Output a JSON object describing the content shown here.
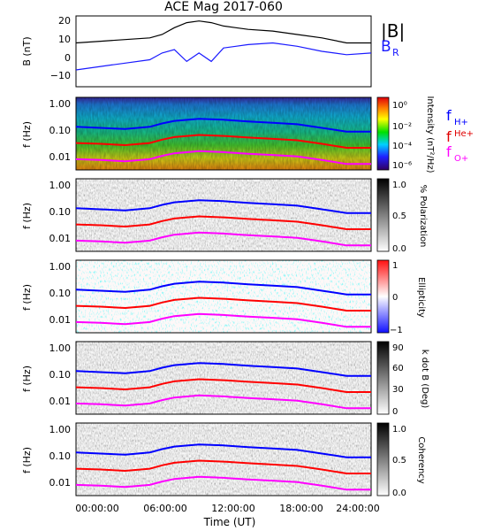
{
  "title": "ACE Mag 2017-060",
  "xlabel": "Time (UT)",
  "x_ticks": [
    "00:00:00",
    "06:00:00",
    "12:00:00",
    "18:00:00",
    "24:00:00"
  ],
  "colors": {
    "total_field": "#000000",
    "radial_field": "#1a1aff",
    "f_h": "#0000ff",
    "f_he": "#ff0000",
    "f_o": "#ff00ff"
  },
  "freq_legend": {
    "h": {
      "base": "f",
      "sub": "H+"
    },
    "he": {
      "base": "f",
      "sup": "He+"
    },
    "o": {
      "base": "f",
      "sub": "O+"
    }
  },
  "chart_data": [
    {
      "type": "line",
      "panel": "magnetic-field",
      "ylabel": "B (nT)",
      "ylim": [
        -20,
        22
      ],
      "y_ticks": [
        "20",
        "10",
        "0",
        "−10"
      ],
      "x_hours": [
        0,
        2,
        4,
        6,
        7,
        8,
        9,
        10,
        11,
        12,
        13,
        14,
        16,
        18,
        20,
        22,
        24
      ],
      "series": [
        {
          "name": "|B|",
          "legend_label": "|B|",
          "values": [
            6,
            7,
            8,
            9,
            11,
            15,
            18,
            19,
            18,
            16,
            15,
            14,
            13,
            11,
            9,
            6,
            6
          ]
        },
        {
          "name": "B_R",
          "legend_base": "B",
          "legend_sub": "R",
          "values": [
            -10,
            -8,
            -6,
            -4,
            0,
            2,
            -5,
            0,
            -5,
            3,
            4,
            5,
            6,
            4,
            1,
            -1,
            0
          ]
        }
      ]
    },
    {
      "type": "heatmap",
      "panel": "intensity",
      "ylabel": "f (Hz)",
      "y_ticks": [
        "1.00",
        "0.10",
        "0.01"
      ],
      "colorbar_label": "Intensity (nT²/Hz)",
      "colorbar_ticks": [
        "10⁰",
        "10⁻²",
        "10⁻⁴",
        "10⁻⁶"
      ],
      "colorbar_scale": "rainbow"
    },
    {
      "type": "heatmap",
      "panel": "polarization",
      "ylabel": "f (Hz)",
      "y_ticks": [
        "1.00",
        "0.10",
        "0.01"
      ],
      "colorbar_label": "% Polarization",
      "colorbar_ticks": [
        "1.0",
        "0.5",
        "0.0"
      ],
      "colorbar_scale": "gray"
    },
    {
      "type": "heatmap",
      "panel": "ellipticity",
      "ylabel": "f (Hz)",
      "y_ticks": [
        "1.00",
        "0.10",
        "0.01"
      ],
      "colorbar_label": "Ellipticity",
      "colorbar_ticks": [
        "1",
        "0",
        "−1"
      ],
      "colorbar_scale": "blue-white-red"
    },
    {
      "type": "heatmap",
      "panel": "k-dot-b",
      "ylabel": "f (Hz)",
      "y_ticks": [
        "1.00",
        "0.10",
        "0.01"
      ],
      "colorbar_label": "k dot B (Deg)",
      "colorbar_ticks": [
        "90",
        "60",
        "30",
        "0"
      ],
      "colorbar_scale": "gray"
    },
    {
      "type": "heatmap",
      "panel": "coherency",
      "ylabel": "f (Hz)",
      "y_ticks": [
        "1.00",
        "0.10",
        "0.01"
      ],
      "colorbar_label": "Coherency",
      "colorbar_ticks": [
        "1.0",
        "0.5",
        "0.0"
      ],
      "colorbar_scale": "gray"
    }
  ],
  "gyrofrequency_lines": {
    "x_hours": [
      0,
      2,
      4,
      6,
      7,
      8,
      10,
      12,
      14,
      16,
      18,
      20,
      22,
      24
    ],
    "f_h": [
      0.12,
      0.11,
      0.1,
      0.12,
      0.16,
      0.2,
      0.24,
      0.22,
      0.19,
      0.17,
      0.15,
      0.11,
      0.08,
      0.08
    ],
    "f_he": [
      0.03,
      0.028,
      0.025,
      0.03,
      0.04,
      0.05,
      0.06,
      0.055,
      0.048,
      0.043,
      0.038,
      0.028,
      0.02,
      0.02
    ],
    "f_o": [
      0.0075,
      0.007,
      0.0063,
      0.0075,
      0.01,
      0.0125,
      0.015,
      0.0138,
      0.012,
      0.0108,
      0.0095,
      0.007,
      0.005,
      0.005
    ]
  }
}
